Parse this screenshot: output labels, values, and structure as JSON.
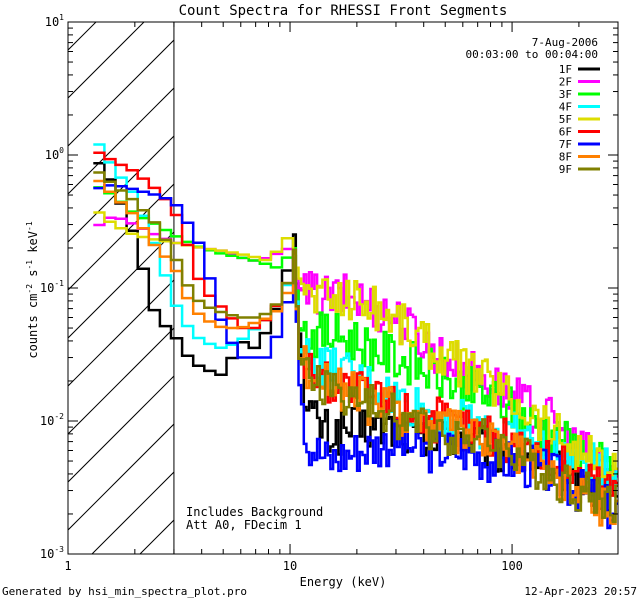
{
  "chart_data": {
    "type": "line",
    "title": "Count Spectra for RHESSI Front Segments",
    "xlabel": "Energy (keV)",
    "ylabel_parts": [
      "counts cm",
      "-2",
      " s",
      "-1",
      " keV",
      "-1"
    ],
    "x_scale": "log",
    "y_scale": "log",
    "xlim": [
      1,
      300
    ],
    "ylim": [
      0.001,
      10
    ],
    "x_ticks": [
      {
        "v": 1,
        "label": "1"
      },
      {
        "v": 10,
        "label": "10"
      },
      {
        "v": 100,
        "label": "100"
      }
    ],
    "y_ticks": [
      {
        "v": 0.001,
        "base": "10",
        "exp": "-3"
      },
      {
        "v": 0.01,
        "base": "10",
        "exp": "-2"
      },
      {
        "v": 0.1,
        "base": "10",
        "exp": "-1"
      },
      {
        "v": 1,
        "base": "10",
        "exp": "0"
      },
      {
        "v": 10,
        "base": "10",
        "exp": "1"
      }
    ],
    "shaded_region": {
      "x_max": 3
    },
    "header_text": {
      "date": "7-Aug-2006",
      "time_range": "00:03:00 to 00:04:00"
    },
    "notes": [
      "Includes Background",
      "Att A0, FDecim 1"
    ],
    "series": [
      {
        "name": "1F",
        "color": "#000000",
        "points": [
          [
            1.3,
            1.0
          ],
          [
            1.6,
            0.6
          ],
          [
            2,
            0.24
          ],
          [
            2.5,
            0.06
          ],
          [
            3,
            0.045
          ],
          [
            3.5,
            0.03
          ],
          [
            4,
            0.025
          ],
          [
            5,
            0.022
          ],
          [
            6,
            0.04
          ],
          [
            7,
            0.035
          ],
          [
            8,
            0.05
          ],
          [
            9,
            0.08
          ],
          [
            10,
            0.16
          ],
          [
            10.5,
            0.26
          ],
          [
            11,
            0.05
          ],
          [
            12,
            0.012
          ],
          [
            15,
            0.008
          ],
          [
            20,
            0.009
          ],
          [
            30,
            0.009
          ],
          [
            40,
            0.007
          ],
          [
            60,
            0.008
          ],
          [
            80,
            0.006
          ],
          [
            100,
            0.006
          ],
          [
            150,
            0.005
          ],
          [
            200,
            0.004
          ],
          [
            250,
            0.003
          ],
          [
            300,
            0.003
          ]
        ]
      },
      {
        "name": "2F",
        "color": "#ff00ff",
        "points": [
          [
            1.3,
            0.28
          ],
          [
            1.6,
            0.35
          ],
          [
            2,
            0.3
          ],
          [
            2.5,
            0.25
          ],
          [
            3,
            0.22
          ],
          [
            4,
            0.2
          ],
          [
            5,
            0.19
          ],
          [
            6,
            0.17
          ],
          [
            7,
            0.16
          ],
          [
            8,
            0.17
          ],
          [
            10,
            0.2
          ],
          [
            11,
            0.1
          ],
          [
            12,
            0.09
          ],
          [
            15,
            0.085
          ],
          [
            20,
            0.085
          ],
          [
            30,
            0.06
          ],
          [
            40,
            0.04
          ],
          [
            50,
            0.03
          ],
          [
            60,
            0.025
          ],
          [
            80,
            0.02
          ],
          [
            100,
            0.015
          ],
          [
            150,
            0.01
          ],
          [
            200,
            0.006
          ],
          [
            250,
            0.005
          ],
          [
            300,
            0.004
          ]
        ]
      },
      {
        "name": "3F",
        "color": "#00ff00",
        "points": [
          [
            1.3,
            0.6
          ],
          [
            1.6,
            0.5
          ],
          [
            2,
            0.36
          ],
          [
            2.5,
            0.3
          ],
          [
            3,
            0.25
          ],
          [
            3.5,
            0.22
          ],
          [
            4,
            0.2
          ],
          [
            5,
            0.18
          ],
          [
            6,
            0.17
          ],
          [
            7,
            0.16
          ],
          [
            8,
            0.15
          ],
          [
            9,
            0.14
          ],
          [
            10,
            0.18
          ],
          [
            10.5,
            0.2
          ],
          [
            11,
            0.05
          ],
          [
            12,
            0.045
          ],
          [
            15,
            0.045
          ],
          [
            20,
            0.04
          ],
          [
            30,
            0.03
          ],
          [
            40,
            0.025
          ],
          [
            50,
            0.02
          ],
          [
            60,
            0.018
          ],
          [
            80,
            0.015
          ],
          [
            100,
            0.012
          ],
          [
            150,
            0.008
          ],
          [
            200,
            0.006
          ],
          [
            300,
            0.004
          ]
        ]
      },
      {
        "name": "4F",
        "color": "#00ffff",
        "points": [
          [
            1.3,
            1.4
          ],
          [
            1.6,
            0.8
          ],
          [
            2,
            0.5
          ],
          [
            2.5,
            0.2
          ],
          [
            3,
            0.08
          ],
          [
            3.5,
            0.05
          ],
          [
            4,
            0.04
          ],
          [
            5,
            0.035
          ],
          [
            6,
            0.04
          ],
          [
            7,
            0.05
          ],
          [
            8,
            0.06
          ],
          [
            9,
            0.07
          ],
          [
            10,
            0.12
          ],
          [
            10.5,
            0.2
          ],
          [
            11,
            0.035
          ],
          [
            12,
            0.03
          ],
          [
            15,
            0.025
          ],
          [
            20,
            0.02
          ],
          [
            30,
            0.015
          ],
          [
            40,
            0.012
          ],
          [
            60,
            0.01
          ],
          [
            80,
            0.009
          ],
          [
            100,
            0.008
          ],
          [
            150,
            0.006
          ],
          [
            200,
            0.005
          ],
          [
            300,
            0.004
          ]
        ]
      },
      {
        "name": "5F",
        "color": "#dddd00",
        "points": [
          [
            1.3,
            0.4
          ],
          [
            1.6,
            0.3
          ],
          [
            2,
            0.25
          ],
          [
            2.5,
            0.23
          ],
          [
            3,
            0.22
          ],
          [
            4,
            0.2
          ],
          [
            5,
            0.19
          ],
          [
            6,
            0.18
          ],
          [
            7,
            0.17
          ],
          [
            8,
            0.16
          ],
          [
            9,
            0.2
          ],
          [
            10,
            0.25
          ],
          [
            11,
            0.12
          ],
          [
            12,
            0.09
          ],
          [
            15,
            0.085
          ],
          [
            20,
            0.085
          ],
          [
            30,
            0.06
          ],
          [
            40,
            0.04
          ],
          [
            50,
            0.03
          ],
          [
            60,
            0.025
          ],
          [
            80,
            0.02
          ],
          [
            100,
            0.015
          ],
          [
            150,
            0.009
          ],
          [
            200,
            0.006
          ],
          [
            300,
            0.004
          ]
        ]
      },
      {
        "name": "6F",
        "color": "#ff0000",
        "points": [
          [
            1.3,
            1.1
          ],
          [
            1.6,
            0.9
          ],
          [
            2,
            0.75
          ],
          [
            2.5,
            0.55
          ],
          [
            3,
            0.4
          ],
          [
            3.5,
            0.2
          ],
          [
            4,
            0.1
          ],
          [
            5,
            0.07
          ],
          [
            6,
            0.05
          ],
          [
            7,
            0.05
          ],
          [
            8,
            0.06
          ],
          [
            9,
            0.08
          ],
          [
            10,
            0.12
          ],
          [
            10.5,
            0.2
          ],
          [
            11,
            0.03
          ],
          [
            12,
            0.025
          ],
          [
            15,
            0.02
          ],
          [
            20,
            0.017
          ],
          [
            30,
            0.013
          ],
          [
            40,
            0.011
          ],
          [
            60,
            0.009
          ],
          [
            80,
            0.008
          ],
          [
            100,
            0.007
          ],
          [
            150,
            0.005
          ],
          [
            200,
            0.004
          ],
          [
            300,
            0.003
          ]
        ]
      },
      {
        "name": "7F",
        "color": "#0000ff",
        "points": [
          [
            1.3,
            0.55
          ],
          [
            1.6,
            0.6
          ],
          [
            2,
            0.55
          ],
          [
            2.5,
            0.5
          ],
          [
            3,
            0.45
          ],
          [
            3.5,
            0.3
          ],
          [
            4,
            0.2
          ],
          [
            5,
            0.05
          ],
          [
            6,
            0.03
          ],
          [
            7,
            0.03
          ],
          [
            8,
            0.03
          ],
          [
            9,
            0.05
          ],
          [
            10,
            0.09
          ],
          [
            10.5,
            0.18
          ],
          [
            11,
            0.02
          ],
          [
            12,
            0.007
          ],
          [
            15,
            0.005
          ],
          [
            20,
            0.006
          ],
          [
            30,
            0.007
          ],
          [
            40,
            0.006
          ],
          [
            60,
            0.006
          ],
          [
            80,
            0.005
          ],
          [
            100,
            0.005
          ],
          [
            150,
            0.004
          ],
          [
            200,
            0.003
          ],
          [
            300,
            0.002
          ]
        ]
      },
      {
        "name": "8F",
        "color": "#ff8000",
        "points": [
          [
            1.3,
            0.7
          ],
          [
            1.6,
            0.5
          ],
          [
            2,
            0.35
          ],
          [
            2.5,
            0.2
          ],
          [
            3,
            0.15
          ],
          [
            3.5,
            0.08
          ],
          [
            4,
            0.06
          ],
          [
            5,
            0.05
          ],
          [
            6,
            0.05
          ],
          [
            7,
            0.055
          ],
          [
            8,
            0.06
          ],
          [
            9,
            0.07
          ],
          [
            10,
            0.1
          ],
          [
            10.5,
            0.18
          ],
          [
            11,
            0.03
          ],
          [
            12,
            0.025
          ],
          [
            15,
            0.02
          ],
          [
            20,
            0.015
          ],
          [
            30,
            0.012
          ],
          [
            40,
            0.01
          ],
          [
            60,
            0.008
          ],
          [
            80,
            0.007
          ],
          [
            100,
            0.006
          ],
          [
            150,
            0.004
          ],
          [
            200,
            0.003
          ],
          [
            300,
            0.002
          ]
        ]
      },
      {
        "name": "9F",
        "color": "#808000",
        "points": [
          [
            1.3,
            0.8
          ],
          [
            1.6,
            0.6
          ],
          [
            2,
            0.45
          ],
          [
            2.5,
            0.3
          ],
          [
            3,
            0.18
          ],
          [
            3.5,
            0.1
          ],
          [
            4,
            0.075
          ],
          [
            5,
            0.065
          ],
          [
            6,
            0.06
          ],
          [
            7,
            0.06
          ],
          [
            8,
            0.065
          ],
          [
            9,
            0.08
          ],
          [
            10,
            0.12
          ],
          [
            10.5,
            0.2
          ],
          [
            11,
            0.03
          ],
          [
            12,
            0.022
          ],
          [
            15,
            0.018
          ],
          [
            20,
            0.014
          ],
          [
            30,
            0.011
          ],
          [
            40,
            0.009
          ],
          [
            60,
            0.008
          ],
          [
            80,
            0.007
          ],
          [
            100,
            0.006
          ],
          [
            150,
            0.004
          ],
          [
            200,
            0.003
          ],
          [
            300,
            0.0025
          ]
        ]
      }
    ]
  },
  "footer": {
    "generated_by": "Generated by hsi_min_spectra_plot.pro",
    "timestamp": "12-Apr-2023 20:57"
  }
}
